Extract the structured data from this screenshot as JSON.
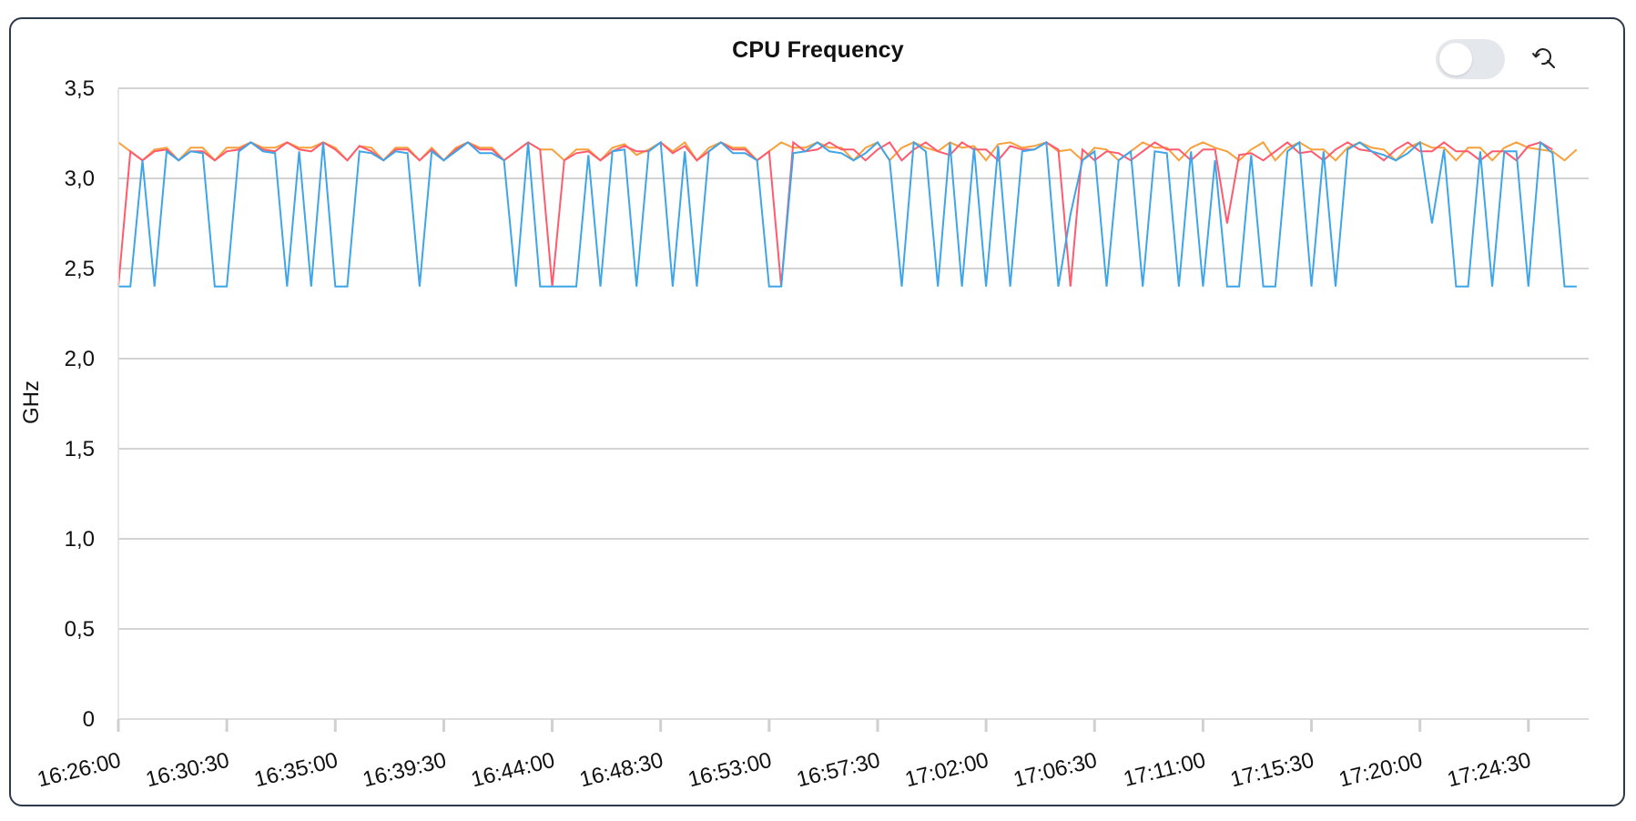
{
  "chart_data": {
    "type": "line",
    "title": "CPU Frequency",
    "ylabel": "GHz",
    "xlabel": "",
    "ylim": [
      0,
      3.5
    ],
    "yticks": [
      "0",
      "0,5",
      "1,0",
      "1,5",
      "2,0",
      "2,5",
      "3,0",
      "3,5"
    ],
    "yticks_values": [
      0,
      0.5,
      1.0,
      1.5,
      2.0,
      2.5,
      3.0,
      3.5
    ],
    "xticks": [
      "16:26:00",
      "16:30:30",
      "16:35:00",
      "16:39:30",
      "16:44:00",
      "16:48:30",
      "16:53:00",
      "16:57:30",
      "17:02:00",
      "17:06:30",
      "17:11:00",
      "17:15:30",
      "17:20:00",
      "17:24:30"
    ],
    "xrange": [
      "16:26:00",
      "17:27:00"
    ],
    "sample_interval": "30s",
    "grid": "horizontal",
    "legend": "none",
    "series": [
      {
        "color": "#f7a13c",
        "values": [
          3.2,
          3.15,
          3.1,
          3.16,
          3.17,
          3.1,
          3.17,
          3.17,
          3.1,
          3.17,
          3.17,
          3.2,
          3.17,
          3.17,
          3.2,
          3.17,
          3.17,
          3.2,
          3.17,
          3.1,
          3.18,
          3.17,
          3.1,
          3.17,
          3.17,
          3.1,
          3.17,
          3.1,
          3.17,
          3.2,
          3.17,
          3.17,
          3.1,
          3.15,
          3.2,
          3.16,
          3.16,
          3.1,
          3.16,
          3.16,
          3.1,
          3.17,
          3.19,
          3.13,
          3.16,
          3.2,
          3.15,
          3.2,
          3.1,
          3.17,
          3.2,
          3.17,
          3.17,
          3.1,
          3.15,
          3.2,
          3.17,
          3.17,
          3.2,
          3.17,
          3.17,
          3.1,
          3.17,
          3.2,
          3.1,
          3.17,
          3.2,
          3.17,
          3.15,
          3.2,
          3.17,
          3.18,
          3.1,
          3.19,
          3.2,
          3.17,
          3.18,
          3.2,
          3.15,
          3.16,
          3.1,
          3.17,
          3.16,
          3.1,
          3.15,
          3.2,
          3.17,
          3.17,
          3.1,
          3.17,
          3.2,
          3.17,
          3.15,
          3.1,
          3.16,
          3.2,
          3.1,
          3.17,
          3.2,
          3.16,
          3.16,
          3.1,
          3.17,
          3.2,
          3.17,
          3.16,
          3.1,
          3.17,
          3.2,
          3.17,
          3.17,
          3.1,
          3.17,
          3.17,
          3.1,
          3.17,
          3.2,
          3.17,
          3.16,
          3.15,
          3.1,
          3.16
        ]
      },
      {
        "color": "#ff5a6e",
        "values": [
          2.4,
          3.15,
          3.1,
          3.15,
          3.16,
          3.1,
          3.15,
          3.15,
          3.1,
          3.15,
          3.16,
          3.2,
          3.16,
          3.15,
          3.2,
          3.16,
          3.15,
          3.2,
          3.16,
          3.1,
          3.18,
          3.15,
          3.1,
          3.16,
          3.16,
          3.1,
          3.16,
          3.1,
          3.16,
          3.2,
          3.16,
          3.16,
          3.1,
          3.15,
          3.2,
          3.16,
          2.4,
          3.1,
          3.14,
          3.15,
          3.1,
          3.15,
          3.18,
          3.15,
          3.15,
          3.2,
          3.14,
          3.18,
          3.1,
          3.15,
          3.2,
          3.16,
          3.16,
          3.1,
          3.15,
          2.4,
          3.2,
          3.15,
          3.16,
          3.2,
          3.16,
          3.16,
          3.1,
          3.16,
          3.2,
          3.1,
          3.16,
          3.2,
          3.15,
          3.13,
          3.2,
          3.16,
          3.16,
          3.1,
          3.18,
          3.16,
          3.16,
          3.2,
          3.16,
          2.4,
          3.16,
          3.1,
          3.15,
          3.14,
          3.1,
          3.15,
          3.2,
          3.16,
          3.16,
          3.1,
          3.16,
          3.16,
          2.75,
          3.13,
          3.14,
          3.1,
          3.15,
          3.2,
          3.14,
          3.15,
          3.1,
          3.16,
          3.2,
          3.16,
          3.15,
          3.1,
          3.16,
          3.2,
          3.15,
          3.15,
          3.2,
          3.15,
          3.15,
          3.1,
          3.15,
          3.15,
          3.1,
          3.18,
          3.2,
          3.16
        ]
      },
      {
        "color": "#3da5e8",
        "values": [
          2.4,
          2.4,
          3.1,
          2.4,
          3.15,
          3.1,
          3.15,
          3.14,
          2.4,
          2.4,
          3.15,
          3.2,
          3.15,
          3.14,
          2.4,
          3.15,
          2.4,
          3.2,
          2.4,
          2.4,
          3.15,
          3.14,
          3.1,
          3.15,
          3.14,
          2.4,
          3.15,
          3.1,
          3.15,
          3.2,
          3.14,
          3.14,
          3.1,
          2.4,
          3.2,
          2.4,
          2.4,
          2.4,
          2.4,
          3.13,
          2.4,
          3.15,
          3.16,
          2.4,
          3.15,
          3.2,
          2.4,
          3.15,
          2.4,
          3.15,
          3.2,
          3.14,
          3.14,
          3.1,
          2.4,
          2.4,
          3.14,
          3.15,
          3.2,
          3.15,
          3.14,
          3.1,
          3.14,
          3.2,
          3.1,
          2.4,
          3.2,
          3.15,
          2.4,
          3.2,
          2.4,
          3.17,
          2.4,
          3.18,
          2.4,
          3.15,
          3.16,
          3.2,
          2.4,
          2.8,
          3.1,
          3.15,
          2.4,
          3.1,
          3.15,
          2.4,
          3.15,
          3.14,
          2.4,
          3.15,
          2.4,
          3.1,
          2.4,
          2.4,
          3.13,
          2.4,
          2.4,
          3.15,
          3.2,
          2.4,
          3.15,
          2.4,
          3.16,
          3.2,
          3.15,
          3.13,
          3.1,
          3.14,
          3.2,
          2.75,
          3.16,
          2.4,
          2.4,
          3.15,
          2.4,
          3.15,
          3.15,
          2.4,
          3.2,
          3.14,
          2.4,
          2.4
        ]
      }
    ]
  },
  "controls": {
    "toggle_state": "off",
    "reset_icon": "reset-zoom-icon"
  }
}
